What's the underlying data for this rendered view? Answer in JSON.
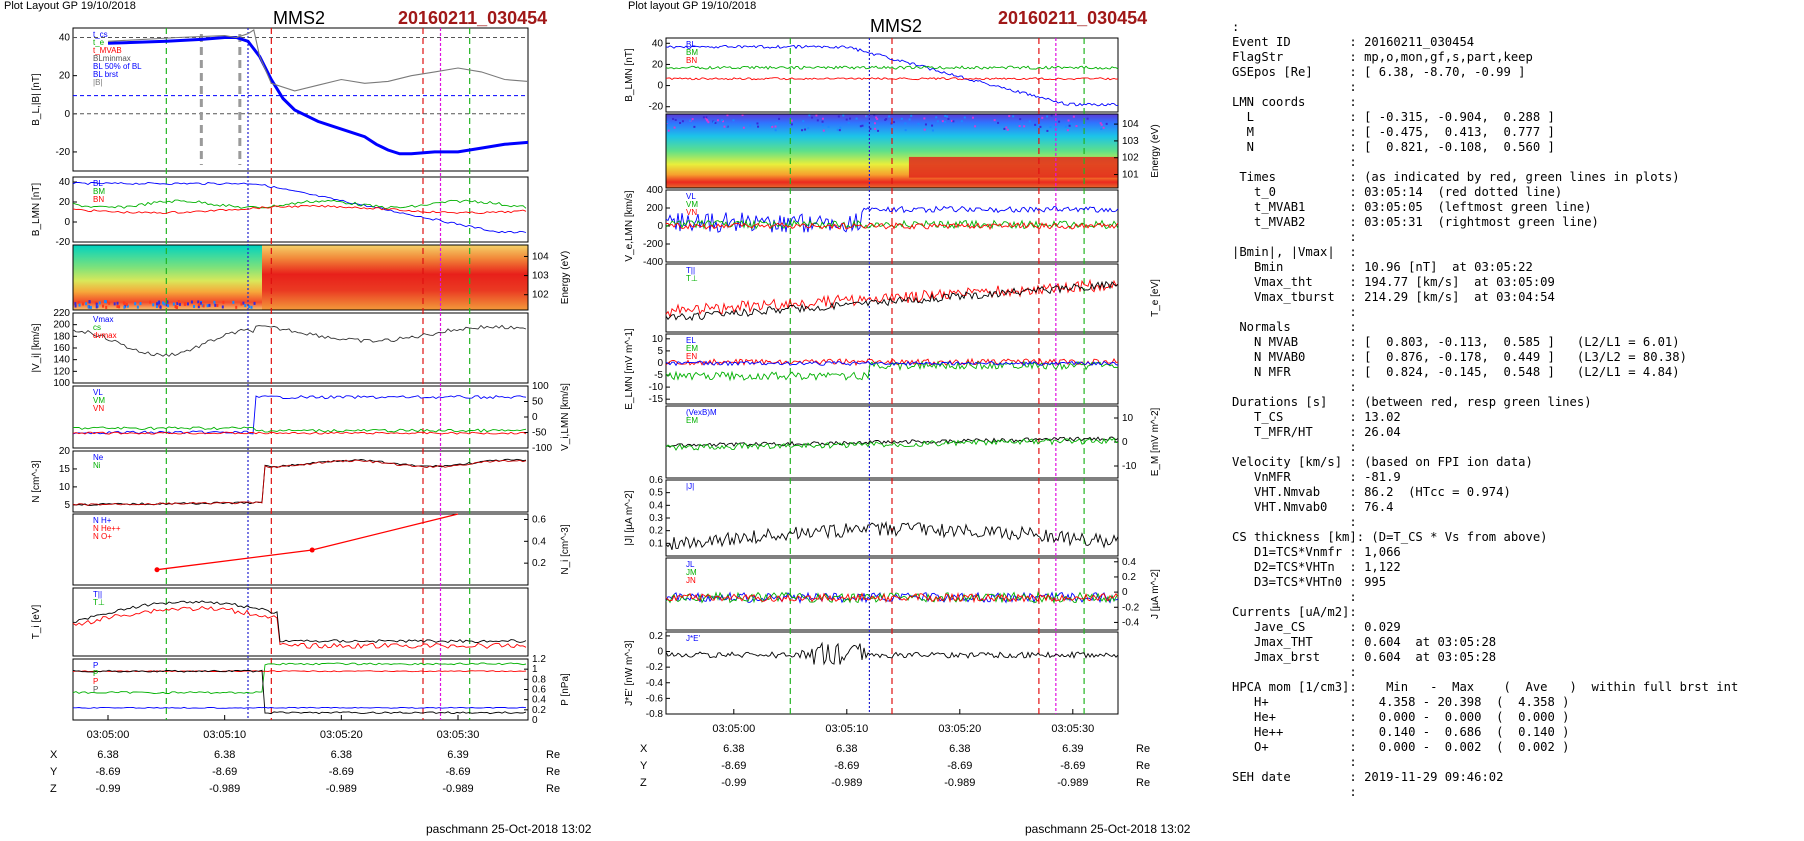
{
  "left": {
    "layout_label": "Plot Layout GP 19/10/2018",
    "spacecraft": "MMS2",
    "event": "20160211_030454",
    "footer": "paschmann 25-Oct-2018 13:02"
  },
  "middle": {
    "layout_label": "Plot layout GP 19/10/2018",
    "spacecraft": "MMS2",
    "event": "20160211_030454",
    "footer": "paschmann 25-Oct-2018 13:02"
  },
  "chart_data": [
    {
      "type": "line",
      "panel": "left-1",
      "ylabel": "B_L,|B| [nT]",
      "ylim": [
        -30,
        45
      ],
      "yticks": [
        40,
        20,
        0,
        -20
      ],
      "legend": [
        "t_cs",
        "t_e",
        "t_MVAB",
        "BLminmax",
        "BL 50% of BL",
        "BL brst",
        "|B|"
      ],
      "series": [
        {
          "name": "BL brst",
          "color": "#0000ff",
          "x": [
            0,
            5,
            8,
            10,
            11,
            12,
            13,
            14,
            15,
            16,
            18,
            20,
            22,
            23,
            24,
            25,
            26,
            28,
            30,
            32,
            34,
            36
          ],
          "y": [
            37,
            38,
            39,
            40,
            40,
            38,
            30,
            18,
            8,
            2,
            -4,
            -8,
            -12,
            -16,
            -19,
            -21,
            -21,
            -20,
            -20,
            -18,
            -16,
            -15
          ]
        },
        {
          "name": "|B|",
          "color": "#7a7a7a",
          "x": [
            0,
            6,
            10,
            11,
            12,
            12.5,
            13,
            14,
            16,
            18,
            20,
            22,
            24,
            26,
            28,
            30,
            32,
            34,
            36
          ],
          "y": [
            38,
            40,
            41,
            40,
            42,
            44,
            30,
            16,
            12,
            15,
            18,
            16,
            17,
            20,
            22,
            24,
            22,
            18,
            17
          ]
        }
      ]
    },
    {
      "type": "line",
      "panel": "left-2",
      "ylabel": "B_LMN [nT]",
      "ylim": [
        -20,
        45
      ],
      "yticks": [
        40,
        20,
        0,
        -20
      ],
      "legend": [
        "BL",
        "BM",
        "BN"
      ]
    },
    {
      "type": "heatmap",
      "panel": "left-3",
      "ylabel": "Energy (eV)",
      "yticks": [
        "10^4",
        "10^3",
        "10^2"
      ]
    },
    {
      "type": "line",
      "panel": "left-4",
      "ylabel": "|V_i| [km/s]",
      "ylim": [
        100,
        220
      ],
      "yticks": [
        220,
        200,
        180,
        160,
        140,
        120,
        100
      ],
      "legend": [
        "Vmax",
        "cs",
        "dvmax"
      ]
    },
    {
      "type": "line",
      "panel": "left-5",
      "ylabel": "V_i,LMN [km/s]",
      "ylim": [
        -100,
        100
      ],
      "yticks": [
        100,
        50,
        0,
        -50,
        -100
      ],
      "legend": [
        "VL",
        "VM",
        "VN"
      ]
    },
    {
      "type": "line",
      "panel": "left-6",
      "ylabel": "N [cm^-3]",
      "ylim": [
        3,
        20
      ],
      "yticks": [
        20,
        15,
        10,
        5
      ],
      "legend": [
        "Ne",
        "Ni"
      ]
    },
    {
      "type": "line",
      "panel": "left-7",
      "ylabel": "N_i [cm^-3]",
      "ylim": [
        0,
        0.65
      ],
      "yticks": [
        0.6,
        0.4,
        0.2
      ],
      "legend": [
        "N H+",
        "N He++",
        "N O+"
      ],
      "series": [
        {
          "name": "N He++",
          "color": "#ff0000",
          "x": [
            4.2,
            17.5,
            30
          ],
          "y": [
            0.14,
            0.32,
            0.7
          ]
        }
      ]
    },
    {
      "type": "line",
      "panel": "left-8",
      "ylabel": "T_i [eV]",
      "legend": [
        "T||",
        "T⊥"
      ]
    },
    {
      "type": "line",
      "panel": "left-9",
      "ylabel": "P [nPa]",
      "ylim": [
        0,
        1.2
      ],
      "yticks": [
        1.2,
        1.0,
        0.8,
        0.6,
        0.4,
        0.2,
        0.0
      ],
      "legend": [
        "P",
        "P",
        "P",
        "P"
      ]
    },
    {
      "type": "line",
      "panel": "mid-1",
      "ylabel": "B_LMN [nT]",
      "ylim": [
        -25,
        45
      ],
      "yticks": [
        40,
        20,
        0,
        -20
      ],
      "legend": [
        "BL",
        "BM",
        "BN"
      ]
    },
    {
      "type": "heatmap",
      "panel": "mid-2",
      "ylabel": "Energy (eV)",
      "yticks": [
        "10^4",
        "10^3",
        "10^2",
        "10^1"
      ]
    },
    {
      "type": "line",
      "panel": "mid-3",
      "ylabel": "V_e,LMN [km/s]",
      "ylim": [
        -400,
        400
      ],
      "yticks": [
        400,
        200,
        0,
        -200,
        -400
      ],
      "legend": [
        "VL",
        "VM",
        "VN"
      ]
    },
    {
      "type": "line",
      "panel": "mid-4",
      "ylabel": "T_e [eV]",
      "legend": [
        "T||",
        "T⊥"
      ]
    },
    {
      "type": "line",
      "panel": "mid-5",
      "ylabel": "E_LMN [mV m^-1]",
      "ylim": [
        -17,
        12
      ],
      "yticks": [
        10,
        5,
        0,
        -5,
        -10,
        -15
      ],
      "legend": [
        "EL",
        "EM",
        "EN"
      ]
    },
    {
      "type": "line",
      "panel": "mid-6",
      "ylabel": "E_M [mV m^-2]",
      "ylim": [
        -15,
        15
      ],
      "yticks": [
        10,
        0,
        -10
      ],
      "legend": [
        "(VexB)M",
        "EM"
      ]
    },
    {
      "type": "line",
      "panel": "mid-7",
      "ylabel": "|J| [µA m^-2]",
      "ylim": [
        0,
        0.6
      ],
      "yticks": [
        0.6,
        0.5,
        0.4,
        0.3,
        0.2,
        0.1
      ],
      "legend": [
        "|J|"
      ]
    },
    {
      "type": "line",
      "panel": "mid-8",
      "ylabel": "J [µA m^-2]",
      "ylim": [
        -0.5,
        0.45
      ],
      "yticks": [
        0.4,
        0.2,
        0.0,
        -0.2,
        -0.4
      ],
      "legend": [
        "JL",
        "JM",
        "JN"
      ]
    },
    {
      "type": "line",
      "panel": "mid-9",
      "ylabel": "J*E' [nW m^-3]",
      "ylim": [
        -0.8,
        0.25
      ],
      "yticks": [
        0.2,
        0.0,
        -0.2,
        -0.4,
        -0.6,
        -0.8
      ],
      "legend": [
        "J*E'"
      ]
    }
  ],
  "time_axis": {
    "left_ticks": [
      "03:05:00",
      "03:05:10",
      "03:05:20",
      "03:05:30"
    ],
    "mid_ticks": [
      "03:05:00",
      "03:05:10",
      "03:05:20",
      "03:05:30"
    ],
    "left_labels": [
      "X",
      "Y",
      "Z"
    ],
    "left_rows": [
      [
        "6.38",
        "6.38",
        "6.38",
        "6.39"
      ],
      [
        "-8.69",
        "-8.69",
        "-8.69",
        "-8.69"
      ],
      [
        "-0.99",
        "-0.989",
        "-0.989",
        "-0.989"
      ]
    ],
    "mid_rows": [
      [
        "6.38",
        "6.38",
        "6.38",
        "6.39"
      ],
      [
        "-8.69",
        "-8.69",
        "-8.69",
        "-8.69"
      ],
      [
        "-0.99",
        "-0.989",
        "-0.989",
        "-0.989"
      ]
    ],
    "unit": "Re"
  },
  "info_text": [
    ":",
    "Event ID        : 20160211_030454",
    "FlagStr         : mp,o,mon,gf,s,part,keep",
    "GSEpos [Re]     : [ 6.38, -8.70, -0.99 ]",
    "                :",
    "LMN coords      :",
    "  L             : [ -0.315, -0.904,  0.288 ]",
    "  M             : [ -0.475,  0.413,  0.777 ]",
    "  N             : [  0.821, -0.108,  0.560 ]",
    "                :",
    " Times          : (as indicated by red, green lines in plots)",
    "   t_0          : 03:05:14  (red dotted line)",
    "   t_MVAB1      : 03:05:05  (leftmost green line)",
    "   t_MVAB2      : 03:05:31  (rightmost green line)",
    "                :",
    "|Bmin|, |Vmax|  :",
    "   Bmin         : 10.96 [nT]  at 03:05:22",
    "   Vmax_tht     : 194.77 [km/s]  at 03:05:09",
    "   Vmax_tburst  : 214.29 [km/s]  at 03:04:54",
    "                :",
    " Normals        :",
    "   N MVAB       : [  0.803, -0.113,  0.585 ]   (L2/L1 = 6.01)",
    "   N MVAB0      : [  0.876, -0.178,  0.449 ]   (L3/L2 = 80.38)",
    "   N MFR        : [  0.824, -0.145,  0.548 ]   (L2/L1 = 4.84)",
    "                :",
    "Durations [s]   : (between red, resp green lines)",
    "   T_CS         : 13.02",
    "   T_MFR/HT     : 26.04",
    "                :",
    "Velocity [km/s] : (based on FPI ion data)",
    "   VnMFR        : -81.9",
    "   VHT.Nmvab    : 86.2  (HTcc = 0.974)",
    "   VHT.Nmvab0   : 76.4",
    "                :",
    "CS thickness [km]: (D=T_CS * Vs from above)",
    "   D1=TCS*Vnmfr : 1,066",
    "   D2=TCS*VHTn  : 1,122",
    "   D3=TCS*VHTn0 : 995",
    "                :",
    "Currents [uA/m2]:",
    "   Jave_CS      : 0.029",
    "   Jmax_THT     : 0.604  at 03:05:28",
    "   Jmax_brst    : 0.604  at 03:05:28",
    "                :",
    "HPCA mom [1/cm3]:    Min   -  Max    (  Ave   )  within full brst int",
    "   H+           :   4.358 - 20.398  (  4.358 )",
    "   He+          :   0.000 -  0.000  (  0.000 )",
    "   He++         :   0.140 -  0.686  (  0.140 )",
    "   O+           :   0.000 -  0.002  (  0.002 )",
    "                :",
    "SEH date        : 2019-11-29 09:46:02",
    "                :"
  ]
}
